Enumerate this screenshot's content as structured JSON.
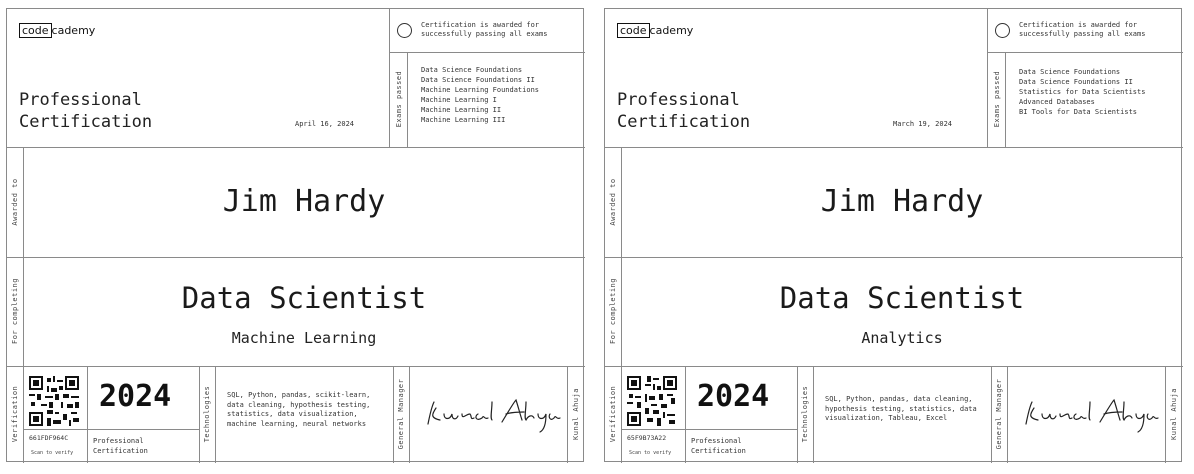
{
  "certificates": [
    {
      "logo_left": "code",
      "logo_right": "cademy",
      "cert_type_line1": "Professional",
      "cert_type_line2": "Certification",
      "date": "April 16, 2024",
      "awarded_note": "Certification is awarded for successfully passing all exams",
      "exams_label": "Exams passed",
      "exams": [
        "Data Science Foundations",
        "Data Science Foundations II",
        "Machine Learning Foundations",
        "Machine Learning I",
        "Machine Learning II",
        "Machine Learning III"
      ],
      "awarded_to_label": "Awarded to",
      "name": "Jim Hardy",
      "for_completing_label": "For completing",
      "track": "Data Scientist",
      "specialization": "Machine Learning",
      "verification_label": "Verification",
      "verification_code": "661FDF964C",
      "scan_note": "Scan to verify",
      "year": "2024",
      "prof_small_line1": "Professional",
      "prof_small_line2": "Certification",
      "technologies_label": "Technologies",
      "technologies": "SQL, Python, pandas, scikit-learn, data cleaning, hypothesis testing, statistics, data visualization, machine learning, neural networks",
      "gm_label": "General Manager",
      "signer": "Kunal Ahuja"
    },
    {
      "logo_left": "code",
      "logo_right": "cademy",
      "cert_type_line1": "Professional",
      "cert_type_line2": "Certification",
      "date": "March 19, 2024",
      "awarded_note": "Certification is awarded for successfully passing all exams",
      "exams_label": "Exams passed",
      "exams": [
        "Data Science Foundations",
        "Data Science Foundations II",
        "Statistics for Data Scientists",
        "Advanced Databases",
        "BI Tools for Data Scientists"
      ],
      "awarded_to_label": "Awarded to",
      "name": "Jim Hardy",
      "for_completing_label": "For completing",
      "track": "Data Scientist",
      "specialization": "Analytics",
      "verification_label": "Verification",
      "verification_code": "65F9B73A22",
      "scan_note": "Scan to verify",
      "year": "2024",
      "prof_small_line1": "Professional",
      "prof_small_line2": "Certification",
      "technologies_label": "Technologies",
      "technologies": "SQL, Python, pandas, data cleaning, hypothesis testing, statistics, data visualization, Tableau, Excel",
      "gm_label": "General Manager",
      "signer": "Kunal Ahuja"
    }
  ]
}
